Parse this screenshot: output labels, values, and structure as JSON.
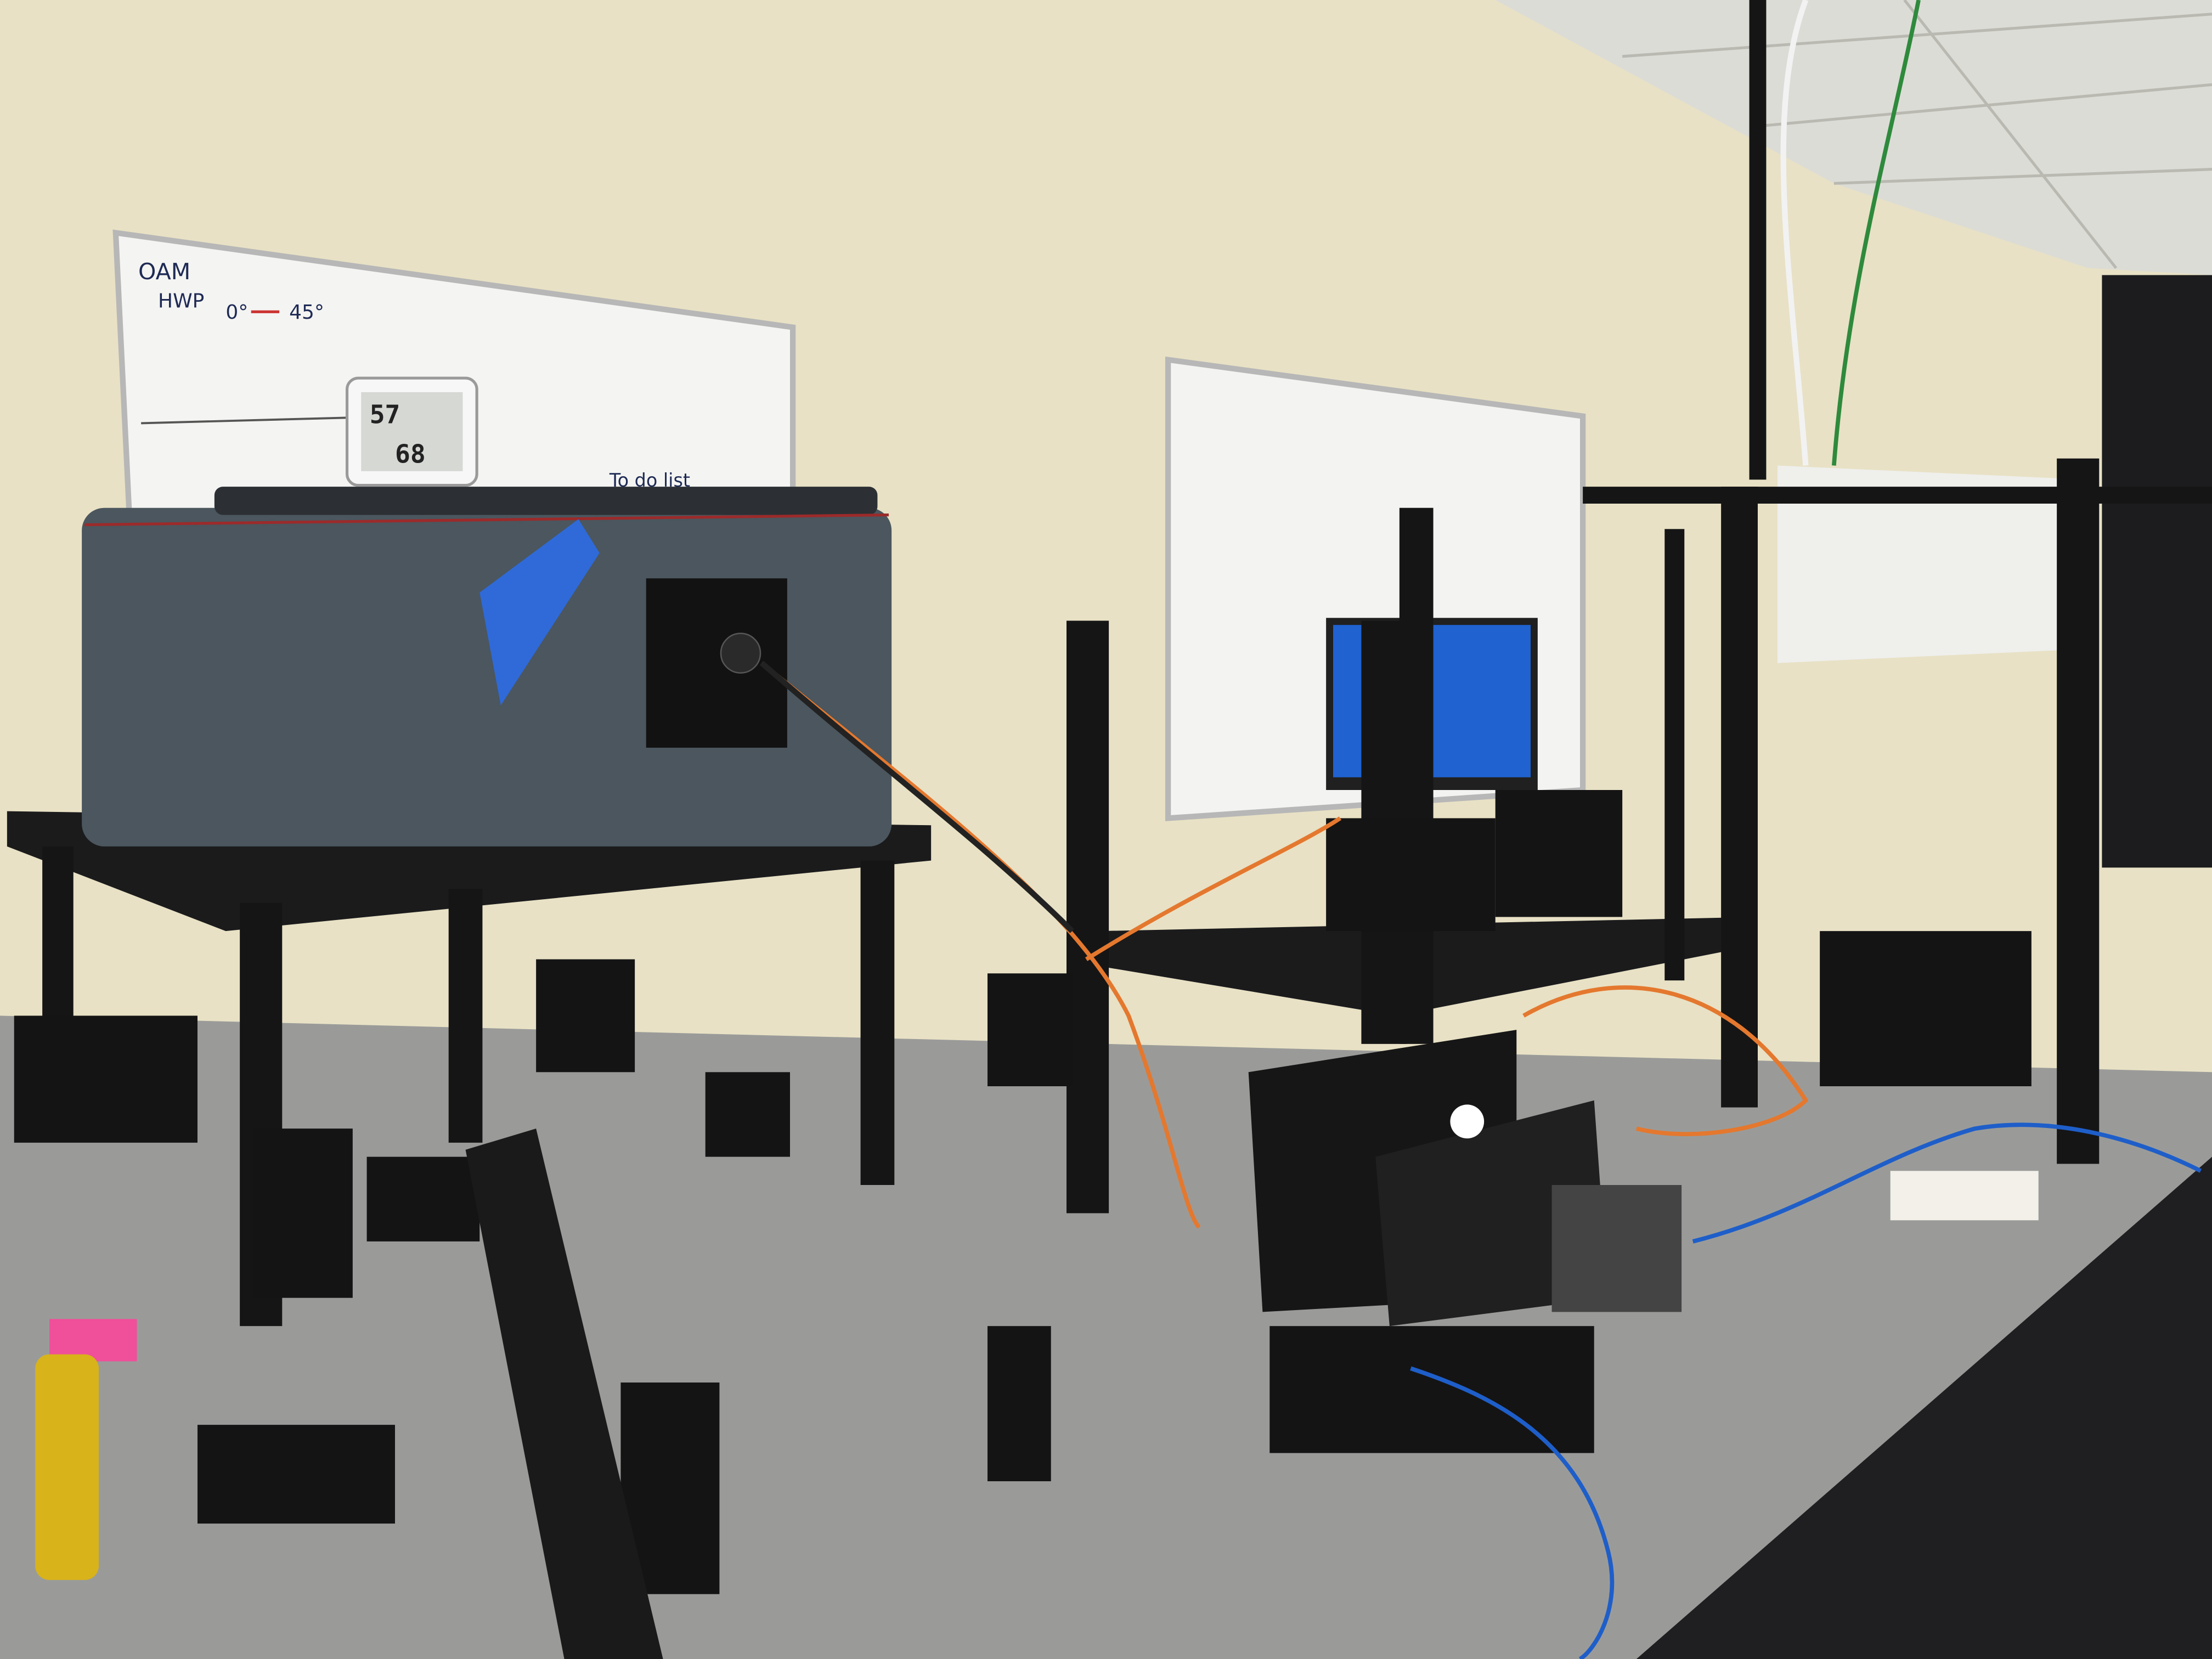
{
  "whiteboard": {
    "title": "OAM",
    "label": "HWP",
    "angle_start": "0°",
    "angle_end": "45°",
    "note": "To do list"
  },
  "hygrometer": {
    "top_reading": "57",
    "bottom_reading": "68"
  }
}
